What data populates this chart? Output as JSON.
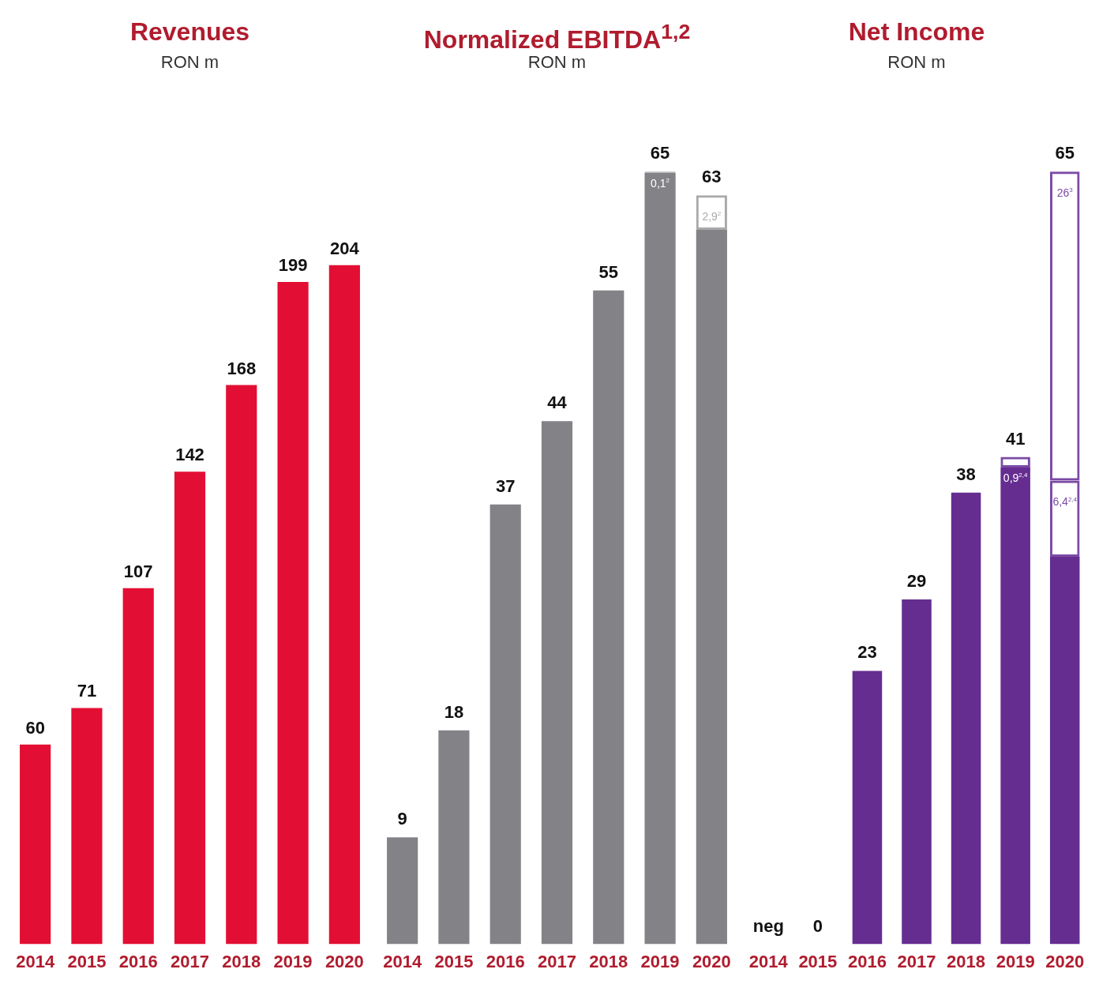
{
  "chart_data": [
    {
      "type": "bar",
      "title": "Revenues",
      "subtitle": "RON m",
      "categories": [
        "2014",
        "2015",
        "2016",
        "2017",
        "2018",
        "2019",
        "2020"
      ],
      "values": [
        60,
        71,
        107,
        142,
        168,
        199,
        204
      ],
      "color": "#e30e33",
      "data_labels": true,
      "grid": false,
      "legend": false,
      "tick_labels": "x"
    },
    {
      "type": "bar",
      "title": "Normalized EBITDA$^{1,2}$",
      "subtitle": "RON m",
      "categories": [
        "2014",
        "2015",
        "2016",
        "2017",
        "2018",
        "2019",
        "2020"
      ],
      "stacked": true,
      "grid": false,
      "legend": false,
      "tick_labels": "x",
      "series": [
        {
          "color": "#838387",
          "values": [
            9,
            18,
            37,
            44,
            55,
            64.9,
            60.1
          ]
        },
        {
          "color": "#aaaaaa",
          "line_style": "dashed",
          "values": [
            null,
            null,
            null,
            null,
            null,
            0.1,
            2.9
          ],
          "value_labels": [
            null,
            null,
            null,
            null,
            null,
            "0,1$^{2}$",
            "2,9$^{2}$"
          ]
        }
      ],
      "totals": [
        "9",
        "18",
        "37",
        "44",
        "55",
        "65",
        "63"
      ]
    },
    {
      "type": "bar",
      "title": "Net Income",
      "subtitle": "RON m",
      "categories": [
        "2014",
        "2015",
        "2016",
        "2017",
        "2018",
        "2019",
        "2020"
      ],
      "stacked": true,
      "grid": false,
      "legend": false,
      "tick_labels": "x",
      "series": [
        {
          "color": "#662d91",
          "values": [
            0,
            0,
            23,
            29,
            38,
            40.1,
            32.6
          ]
        },
        {
          "color": "#7b4aa6",
          "line_style": "dashed",
          "values": [
            null,
            null,
            null,
            null,
            null,
            0.9,
            6.4
          ],
          "value_labels": [
            null,
            null,
            null,
            null,
            null,
            "0,9$^{2,4}$",
            "6,4$^{2,4}$"
          ]
        },
        {
          "color": "#7b4aa6",
          "line_style": "dashed",
          "values": [
            null,
            null,
            null,
            null,
            null,
            null,
            26
          ],
          "value_labels": [
            null,
            null,
            null,
            null,
            null,
            null,
            "26$^{3}$"
          ]
        }
      ],
      "totals": [
        "neg",
        "0",
        "23",
        "29",
        "38",
        "41",
        "65"
      ]
    }
  ]
}
